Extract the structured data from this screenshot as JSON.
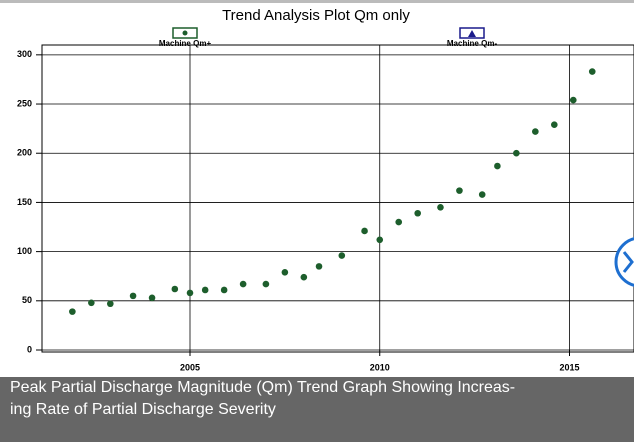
{
  "chart_data": {
    "type": "scatter",
    "title": "Trend Analysis Plot Qm only",
    "series": [
      {
        "name": "Machine Qm+",
        "color": "#1d5e2c",
        "x": [
          2001.9,
          2002.4,
          2002.9,
          2003.5,
          2004.0,
          2004.6,
          2005.0,
          2005.4,
          2005.9,
          2006.4,
          2007.0,
          2007.5,
          2008.0,
          2008.4,
          2009.0,
          2009.6,
          2010.0,
          2010.5,
          2011.0,
          2011.6,
          2012.1,
          2012.7,
          2013.1,
          2013.6,
          2014.1,
          2014.6,
          2015.1,
          2015.6
        ],
        "values": [
          39,
          48,
          47,
          55,
          53,
          62,
          58,
          61,
          61,
          67,
          67,
          79,
          74,
          85,
          96,
          121,
          112,
          130,
          139,
          145,
          162,
          158,
          187,
          200,
          222,
          229,
          254,
          283
        ]
      },
      {
        "name": "Machine Qm-",
        "color": "#1a1a8c",
        "x": [],
        "values": []
      }
    ],
    "xlim": [
      2001.1,
      2016.7
    ],
    "xticks": [
      2005,
      2010,
      2015
    ],
    "ylim": [
      0,
      310
    ],
    "yticks": [
      0,
      50,
      100,
      150,
      200,
      250,
      300
    ],
    "grid": true
  },
  "caption": [
    "Peak Partial Discharge Magnitude (Qm) Trend Graph Showing Increas-",
    "ing Rate of Partial Discharge Severity"
  ]
}
